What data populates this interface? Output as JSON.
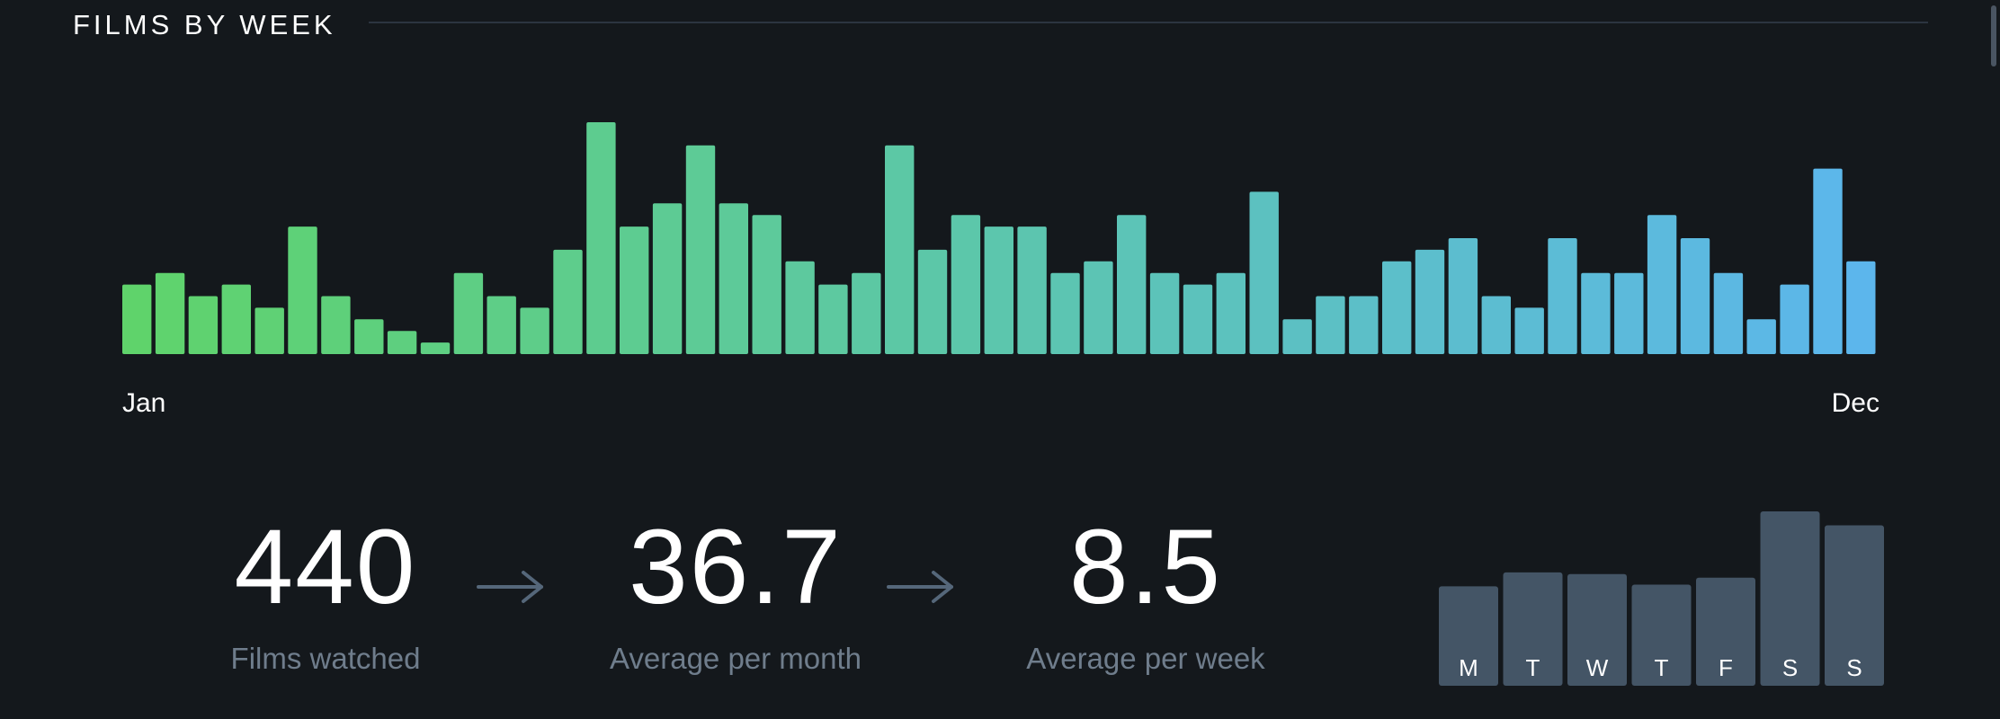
{
  "section": {
    "title": "FILMS BY WEEK"
  },
  "chart_data": [
    {
      "type": "bar",
      "title": "",
      "xlabel": "",
      "ylabel": "",
      "x_tick_labels": [
        "Jan",
        "Dec"
      ],
      "values": [
        6,
        7,
        5,
        6,
        4,
        11,
        5,
        3,
        2,
        1,
        7,
        5,
        4,
        9,
        20,
        11,
        13,
        18,
        13,
        12,
        8,
        6,
        7,
        18,
        9,
        12,
        11,
        11,
        7,
        8,
        12,
        7,
        6,
        7,
        14,
        3,
        5,
        5,
        8,
        9,
        10,
        5,
        4,
        10,
        7,
        7,
        12,
        10,
        7,
        3,
        6,
        16,
        8
      ],
      "ylim": [
        0,
        20
      ],
      "colors": {
        "start": "#5fd36b",
        "mid": "#5cc6ad",
        "end": "#5cb6ec"
      },
      "grid": false
    },
    {
      "type": "bar",
      "title": "",
      "categories": [
        "M",
        "T",
        "W",
        "T",
        "F",
        "S",
        "S"
      ],
      "values": [
        57,
        65,
        64,
        58,
        62,
        100,
        92
      ],
      "ylim": [
        0,
        100
      ],
      "color": "#445566",
      "grid": false
    }
  ],
  "stats": [
    {
      "value": "440",
      "label": "Films watched"
    },
    {
      "value": "36.7",
      "label": "Average per month"
    },
    {
      "value": "8.5",
      "label": "Average per week"
    }
  ],
  "colors": {
    "background": "#14181c",
    "label_muted": "#6f7d8c",
    "arrow": "#55677a"
  }
}
